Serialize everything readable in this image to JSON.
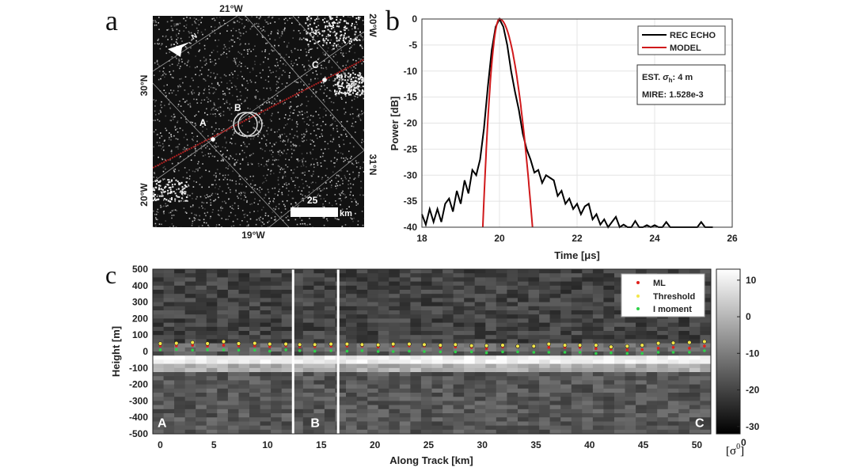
{
  "panels": {
    "a": "a",
    "b": "b",
    "c": "c"
  },
  "map": {
    "lon_top": "21°W",
    "lon_right_top": "20°W",
    "lat_left": "30°N",
    "lat_right": "31°N",
    "lon_left_bottom": "20°W",
    "lon_bottom": "19°W",
    "point_labels": [
      "A",
      "B",
      "C"
    ],
    "scale_value": "25",
    "scale_unit": "km",
    "north_label": "N"
  },
  "chart_data": [
    {
      "type": "line",
      "xlabel": "Time [μs]",
      "ylabel": "Power [dB]",
      "xlim": [
        18,
        26
      ],
      "ylim": [
        -40,
        0
      ],
      "xticks": [
        "18",
        "20",
        "22",
        "24",
        "26"
      ],
      "yticks": [
        "0",
        "-5",
        "-10",
        "-15",
        "-20",
        "-25",
        "-30",
        "-35",
        "-40"
      ],
      "grid": true,
      "legend_position": "top-right",
      "series": [
        {
          "name": "REC ECHO",
          "color": "#000000",
          "x_start": 18.0,
          "x_step": 0.1,
          "values": [
            -37.5,
            -39.5,
            -36.5,
            -39,
            -36.5,
            -39,
            -35.5,
            -34.5,
            -37,
            -33,
            -35.5,
            -31,
            -33.5,
            -29,
            -30,
            -27,
            -21,
            -13,
            -6,
            -1.5,
            0,
            -1.5,
            -5,
            -10,
            -14,
            -17.5,
            -22,
            -25,
            -27,
            -29.5,
            -29,
            -31.5,
            -30,
            -30.5,
            -31,
            -34,
            -33,
            -35.5,
            -34.5,
            -36.5,
            -35.5,
            -37.5,
            -36,
            -35.5,
            -38.5,
            -37.5,
            -39.5,
            -38.5,
            -40,
            -39,
            -38,
            -40,
            -39.5,
            -40,
            -40,
            -38.8,
            -40,
            -40,
            -39.6,
            -40,
            -39.6,
            -40,
            -40,
            -39,
            -40,
            -40,
            -40,
            -40,
            -40,
            -40,
            -40,
            -40,
            -39,
            -40,
            -40,
            -40
          ]
        },
        {
          "name": "MODEL",
          "color": "#d0191b",
          "peak": 20.0,
          "left_zero_db_at": 19.57,
          "right_zero_db_at": 20.85
        }
      ],
      "annotation": {
        "est_prefix": "EST. ",
        "sigma": "σ",
        "sigma_sub": "h",
        "est_value": ": 4 m",
        "mire": "MIRE: 1.528e-3"
      }
    },
    {
      "type": "heatmap",
      "xlabel": "Along Track [km]",
      "ylabel": "Height [m]",
      "xlim": [
        -0.7,
        51.3
      ],
      "ylim": [
        -500,
        500
      ],
      "xticks": [
        "0",
        "5",
        "10",
        "15",
        "20",
        "25",
        "30",
        "35",
        "40",
        "45",
        "50"
      ],
      "yticks": [
        "500",
        "400",
        "300",
        "200",
        "100",
        "0",
        "-100",
        "-200",
        "-300",
        "-400",
        "-500"
      ],
      "segments": [
        {
          "label": "A",
          "from": -0.7,
          "to": 12.3
        },
        {
          "label": "B",
          "from": 12.4,
          "to": 16.5
        },
        {
          "label": "C",
          "from": 16.6,
          "to": 51.3
        }
      ],
      "surface_band": [
        -20,
        -80
      ],
      "colorbar": {
        "range": [
          -32,
          13
        ],
        "ticks": [
          "10",
          "0",
          "-10",
          "-20",
          "-30"
        ],
        "label": "[σ",
        "label_sup": "0",
        "bottom_label": "0"
      },
      "legend_position": "top-right",
      "x": [
        0,
        1.5,
        3,
        4.4,
        5.9,
        7.3,
        8.8,
        10.2,
        11.7,
        13,
        14.4,
        15.9,
        17.4,
        18.8,
        20.3,
        21.7,
        23.2,
        24.6,
        26.1,
        27.5,
        29,
        30.4,
        31.9,
        33.3,
        34.8,
        36.2,
        37.7,
        39.1,
        40.6,
        42,
        43.5,
        44.9,
        46.4,
        47.8,
        49.3,
        50.7
      ],
      "series": [
        {
          "name": "ML",
          "color": "#e0201a",
          "values": [
            35,
            35,
            38,
            33,
            38,
            35,
            35,
            30,
            35,
            30,
            30,
            33,
            33,
            33,
            28,
            33,
            35,
            33,
            25,
            28,
            25,
            18,
            28,
            28,
            28,
            25,
            25,
            25,
            18,
            15,
            10,
            12,
            20,
            25,
            20,
            33
          ]
        },
        {
          "name": "Threshold",
          "color": "#f2e64a",
          "values": [
            48,
            50,
            55,
            48,
            60,
            48,
            50,
            45,
            45,
            42,
            42,
            45,
            45,
            42,
            40,
            45,
            45,
            42,
            38,
            42,
            35,
            35,
            38,
            32,
            32,
            45,
            38,
            38,
            38,
            28,
            32,
            38,
            50,
            52,
            55,
            60
          ]
        },
        {
          "name": "I moment",
          "color": "#2fd24a",
          "values": [
            10,
            12,
            8,
            10,
            10,
            8,
            8,
            2,
            10,
            5,
            2,
            5,
            2,
            5,
            0,
            0,
            2,
            0,
            -2,
            -2,
            -2,
            -8,
            -2,
            -2,
            -5,
            -5,
            -5,
            -5,
            -12,
            -8,
            -12,
            -12,
            -5,
            -5,
            -5,
            5
          ]
        }
      ]
    }
  ]
}
